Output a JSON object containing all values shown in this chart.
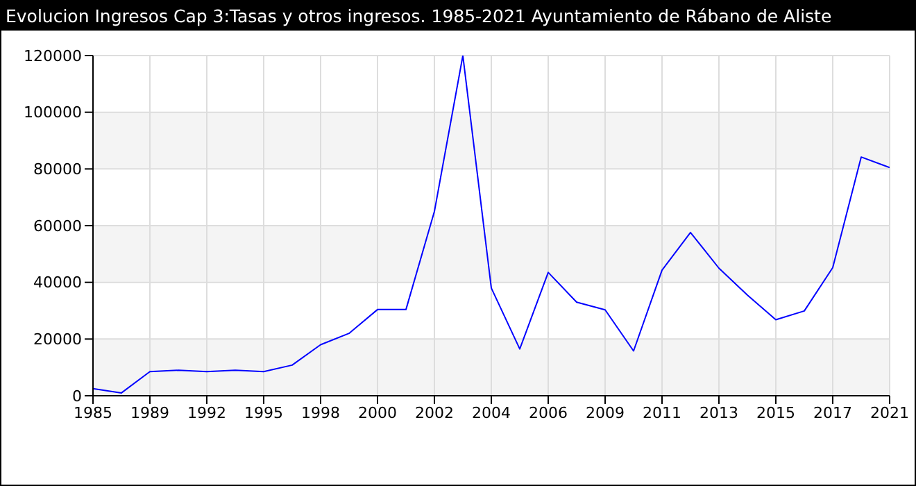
{
  "chart_data": {
    "type": "line",
    "title": "Evolucion Ingresos Cap 3:Tasas y otros ingresos. 1985-2021 Ayuntamiento de Rábano de Aliste",
    "categories": [
      "1985",
      null,
      "1989",
      null,
      "1992",
      null,
      "1995",
      null,
      "1998",
      null,
      "2000",
      null,
      "2002",
      null,
      "2004",
      null,
      "2006",
      null,
      "2009",
      null,
      "2011",
      null,
      "2013",
      null,
      "2015",
      null,
      "2017",
      null,
      "2021"
    ],
    "series": [
      {
        "color": "#0000ff",
        "values": [
          2500,
          1000,
          8500,
          9000,
          8500,
          9000,
          8500,
          10800,
          18000,
          22000,
          30400,
          30400,
          65000,
          120000,
          38000,
          16500,
          43500,
          33000,
          30300,
          15800,
          44300,
          57600,
          45000,
          35500,
          26800,
          29900,
          45200,
          84200,
          80500
        ]
      }
    ],
    "ylim": [
      0,
      120000
    ],
    "yticks": [
      0,
      20000,
      40000,
      60000,
      80000,
      100000,
      120000
    ],
    "grid": true,
    "marker": "none",
    "line_style": "solid"
  }
}
